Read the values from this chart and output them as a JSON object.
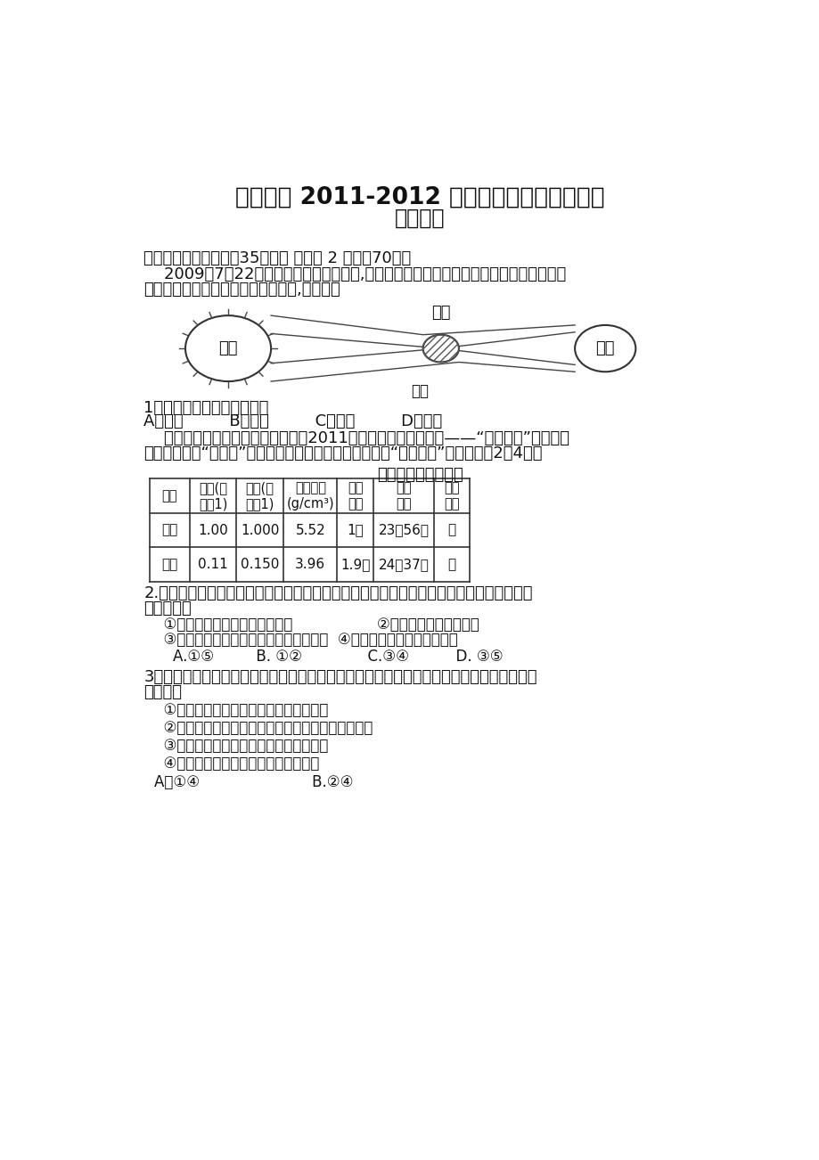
{
  "bg_color": "#ffffff",
  "title_line1": "蓟县一中 2011-2012 学年第一学期第三次月考",
  "title_line2": "高二地理",
  "section1_header": "一、单选题（本大题共35小题， 每小题 2 分，共70分）",
  "section1_intro_l1": "    2009年7月22日上午发生了日全食现象,我国长江流域观测到其全过程。日全食发生时，",
  "section1_intro_l2": "日、地、月三者位置关系如下图所示,据此回答",
  "diagram_caption": "图一",
  "q1_text": "1．图一中显示的天体系统有",
  "q1_options": "A．一级         B．二级         C．三级         D．四级",
  "q1_intro_l1": "    国家航天局有关负责人日前透露，2011年我国首个火星探测器——“荧火一号”将与俄罗",
  "q1_intro_l2": "斯火星探测器“福布斯”相互配合，对火星电离层进行首次“掩星探测”。据此回答2～4题：",
  "table_title": "地球与火星特征比较",
  "table_headers": [
    "行星",
    "质量(地\n球为1)",
    "体积(地\n球为1)",
    "平均密度\n(g/cm³)",
    "公转\n周期",
    "自转\n周期",
    "四季\n更替"
  ],
  "table_row1": [
    "地球",
    "1.00",
    "1.000",
    "5.52",
    "1年",
    "23时56分",
    "有"
  ],
  "table_row2": [
    "火星",
    "0.11",
    "0.150",
    "3.96",
    "1.9年",
    "24时37分",
    "有"
  ],
  "q2_text_l1": "2.液态水的存在是地球生命起源和发展的重要条件之一，下列叙述中与地球存在液态水有密",
  "q2_text_l2": "切关系的是",
  "q2_opt1": "  ①地球上昼夜交替的周期较适中                  ②地球的质量和体积适中",
  "q2_opt2": "  ③地球处于一种比较安全的宇宙环境之中  ④地球与太阳的距离比较适中",
  "q2_answers": "    A.①⑤         B. ①②              C.③④          D. ③⑤",
  "q3_text_l1": "3．人类首先选择火星作为探索生命起源和进化的行星，因为火星在许多方面与地球相似，主",
  "q3_text_l2": "要表现为",
  "q3_opt1": "  ①火星和地球一样被厕厕的大气层所包围",
  "q3_opt2": "  ②火星上和地球上都要四季变化，且四季的长度一样",
  "q3_opt3": "  ③火星、地球自转周期的长度都比较适中",
  "q3_opt4": "  ④火星、地球与太阳的距离都比较适中",
  "q3_answers": "A．①④                        B.②④",
  "sun_label": "太阳",
  "moon_label": "月球",
  "earth_label": "地球"
}
